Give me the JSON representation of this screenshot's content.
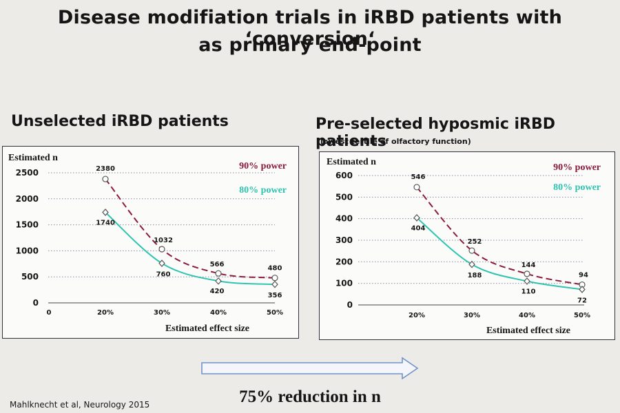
{
  "slide": {
    "title_line1": "Disease modifiation trials in iRBD patients with ‘conversion‘",
    "title_line2": "as primary end-point",
    "summary": "75% reduction in n",
    "citation": "Mahlknecht et al, Neurology 2015",
    "arrow_icon": "right-outline-arrow"
  },
  "panels": {
    "left_heading": "Unselected iRBD patients",
    "right_heading": "Pre-selected hyposmic iRBD patients",
    "right_note": "(lowest tertile of olfactory function)"
  },
  "colors": {
    "power90": "#8b1a3c",
    "power80": "#2ec4b0",
    "frame": "#30303a",
    "grid": "#8a8aa6"
  },
  "chart_data": [
    {
      "type": "line",
      "title": "Unselected iRBD patients",
      "ylabel": "Estimated n",
      "xlabel": "Estimated effect size",
      "xtick_labels": [
        "0",
        "20%",
        "30%",
        "40%",
        "50%"
      ],
      "x": [
        20,
        30,
        40,
        50
      ],
      "yticks": [
        0,
        500,
        1000,
        1500,
        2000,
        2500
      ],
      "ylim": [
        0,
        2500
      ],
      "series": [
        {
          "name": "90% power",
          "values": [
            2380,
            1032,
            566,
            480
          ],
          "style": "dashed",
          "labels": [
            "2380",
            "1032",
            "566",
            "480"
          ]
        },
        {
          "name": "80% power",
          "values": [
            1740,
            760,
            420,
            356
          ],
          "style": "solid",
          "labels": [
            "1740",
            "760",
            "420",
            "356"
          ]
        }
      ]
    },
    {
      "type": "line",
      "title": "Pre-selected hyposmic iRBD patients",
      "ylabel": "Estimated n",
      "xlabel": "Estimated effect size",
      "xtick_labels": [
        "20%",
        "30%",
        "40%",
        "50%"
      ],
      "x": [
        20,
        30,
        40,
        50
      ],
      "yticks": [
        0,
        100,
        200,
        300,
        400,
        500,
        600
      ],
      "ylim": [
        0,
        600
      ],
      "series": [
        {
          "name": "90% power",
          "values": [
            546,
            252,
            144,
            94
          ],
          "style": "dashed",
          "labels": [
            "546",
            "252",
            "144",
            "94"
          ]
        },
        {
          "name": "80% power",
          "values": [
            404,
            188,
            110,
            72
          ],
          "style": "solid",
          "labels": [
            "404",
            "188",
            "110",
            "72"
          ]
        }
      ]
    }
  ]
}
